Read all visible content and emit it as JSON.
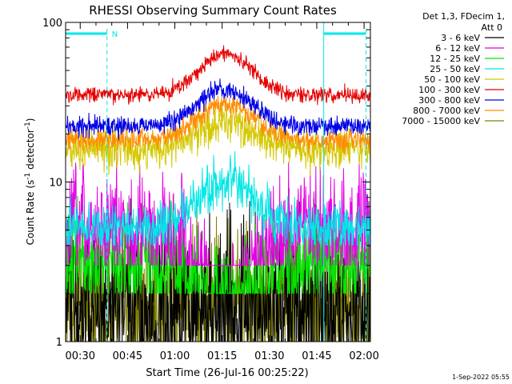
{
  "chart_data": {
    "type": "line",
    "title": "RHESSI Observing Summary Count Rates",
    "xlabel": "Start Time (26-Jul-16 00:25:22)",
    "ylabel_main": "Count Rate (s",
    "ylabel_sup": "-1",
    "ylabel_tail": " detector",
    "ylabel_sup2": "-1",
    "ylabel_end": ")",
    "yscale": "log",
    "ylim": [
      1,
      100
    ],
    "xlim_minutes": [
      25.37,
      122.0
    ],
    "x_ticks": [
      {
        "label": "00:30",
        "minutes": 30
      },
      {
        "label": "00:45",
        "minutes": 45
      },
      {
        "label": "01:00",
        "minutes": 60
      },
      {
        "label": "01:15",
        "minutes": 75
      },
      {
        "label": "01:30",
        "minutes": 90
      },
      {
        "label": "01:45",
        "minutes": 105
      },
      {
        "label": "02:00",
        "minutes": 120
      }
    ],
    "y_ticks": [
      {
        "label": "1",
        "value": 1
      },
      {
        "label": "10",
        "value": 10
      },
      {
        "label": "100",
        "value": 100
      }
    ],
    "legend_header": [
      "Det 1,3, FDecim 1,",
      "Att 0"
    ],
    "night_marks": [
      {
        "label": "N",
        "start_minutes": 25.37,
        "end_minutes": 38.5
      }
    ],
    "day_marks": [
      {
        "start_minutes": 107.2,
        "end_minutes": 120.6
      }
    ],
    "series": [
      {
        "name": "3 - 6 keV",
        "color": "#000000",
        "base": 1.5,
        "peak": 1.6,
        "noise": 0.55,
        "floor": 1.0
      },
      {
        "name": "6 - 12 keV",
        "color": "#e600e6",
        "base": 5.0,
        "peak": 1.2,
        "noise": 0.35,
        "floor": 3.0
      },
      {
        "name": "12 - 25 keV",
        "color": "#00e600",
        "base": 3.2,
        "peak": 1.5,
        "noise": 0.35,
        "floor": 2.0
      },
      {
        "name": "25 - 50 keV",
        "color": "#00e6e6",
        "base": 5.2,
        "peak": 10.0,
        "noise": 0.15,
        "floor": 4.0
      },
      {
        "name": "50 - 100 keV",
        "color": "#d4c800",
        "base": 16.0,
        "peak": 24.0,
        "noise": 0.12,
        "floor": 9.0
      },
      {
        "name": "100 - 300 keV",
        "color": "#e60000",
        "base": 35.0,
        "peak": 63.0,
        "noise": 0.05,
        "floor": 20.0
      },
      {
        "name": "300 - 800 keV",
        "color": "#0000e6",
        "base": 22.5,
        "peak": 38.0,
        "noise": 0.06,
        "floor": 14.0
      },
      {
        "name": "800 - 7000 keV",
        "color": "#ff8c00",
        "base": 18.5,
        "peak": 31.0,
        "noise": 0.07,
        "floor": 12.0
      },
      {
        "name": "7000 - 15000 keV",
        "color": "#808000",
        "base": 1.6,
        "peak": 1.7,
        "noise": 0.5,
        "floor": 1.0
      }
    ],
    "flare_center_minutes": 76.0,
    "flare_width_minutes": 11.0,
    "grid": false,
    "legend_position": "right"
  },
  "timestamp": "1-Sep-2022 05:55"
}
